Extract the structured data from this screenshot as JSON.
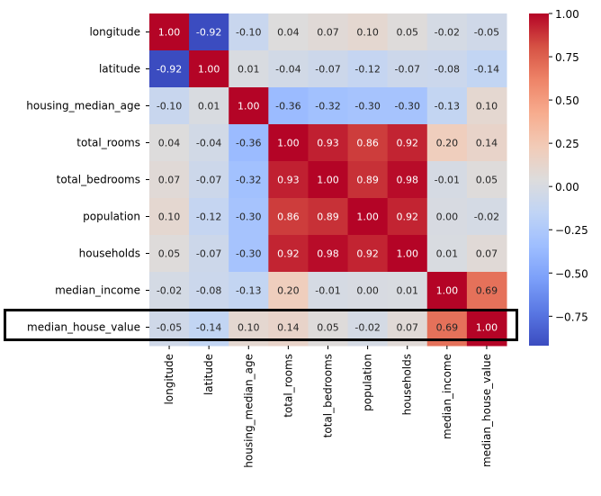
{
  "chart_data": {
    "type": "heatmap",
    "title": "",
    "xlabel": "",
    "ylabel": "",
    "colormap": "coolwarm",
    "annot_format": "0.00",
    "vmin": -0.92,
    "vmax": 1.0,
    "row_labels": [
      "longitude",
      "latitude",
      "housing_median_age",
      "total_rooms",
      "total_bedrooms",
      "population",
      "households",
      "median_income",
      "median_house_value"
    ],
    "col_labels": [
      "longitude",
      "latitude",
      "housing_median_age",
      "total_rooms",
      "total_bedrooms",
      "population",
      "households",
      "median_income",
      "median_house_value"
    ],
    "values": [
      [
        1.0,
        -0.92,
        -0.1,
        0.04,
        0.07,
        0.1,
        0.05,
        -0.02,
        -0.05
      ],
      [
        -0.92,
        1.0,
        0.01,
        -0.04,
        -0.07,
        -0.12,
        -0.07,
        -0.08,
        -0.14
      ],
      [
        -0.1,
        0.01,
        1.0,
        -0.36,
        -0.32,
        -0.3,
        -0.3,
        -0.13,
        0.1
      ],
      [
        0.04,
        -0.04,
        -0.36,
        1.0,
        0.93,
        0.86,
        0.92,
        0.2,
        0.14
      ],
      [
        0.07,
        -0.07,
        -0.32,
        0.93,
        1.0,
        0.89,
        0.98,
        -0.01,
        0.05
      ],
      [
        0.1,
        -0.12,
        -0.3,
        0.86,
        0.89,
        1.0,
        0.92,
        0.0,
        -0.02
      ],
      [
        0.05,
        -0.07,
        -0.3,
        0.92,
        0.98,
        0.92,
        1.0,
        0.01,
        0.07
      ],
      [
        -0.02,
        -0.08,
        -0.13,
        0.2,
        -0.01,
        0.0,
        0.01,
        1.0,
        0.69
      ],
      [
        -0.05,
        -0.14,
        0.1,
        0.14,
        0.05,
        -0.02,
        0.07,
        0.69,
        1.0
      ]
    ],
    "colorbar": {
      "ticks": [
        1.0,
        0.75,
        0.5,
        0.25,
        0.0,
        -0.25,
        -0.5,
        -0.75
      ],
      "tick_labels": [
        "1.00",
        "0.75",
        "0.50",
        "0.25",
        "0.00",
        "−0.25",
        "−0.50",
        "−0.75"
      ],
      "position": "right"
    },
    "highlight": {
      "row": "median_house_value",
      "style": "black rectangle outline"
    }
  }
}
